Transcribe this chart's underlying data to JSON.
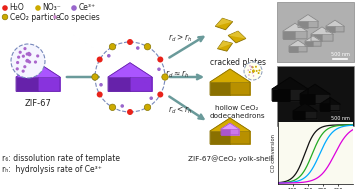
{
  "bg_color": "#ffffff",
  "legend_items": [
    {
      "label": "H₂O",
      "color": "#e8221a"
    },
    {
      "label": "NO₃⁻",
      "color": "#ccaa00"
    },
    {
      "label": "Ce³⁺",
      "color": "#9966cc"
    },
    {
      "label": "CeO₂ particle",
      "color": "#ccaa00"
    },
    {
      "label": "Co species",
      "color": "#cc88cc"
    }
  ],
  "label_zif67": "ZIF-67",
  "label_cracked": "cracked plates",
  "label_hollow": "hollow CeO₂\ndodecahedrons",
  "label_yolk": "ZIF-67@CeO₂ yolk-shell",
  "label_rd": "r₆: dissolution rate of template",
  "label_rh": "rₕ:  hydrolysis rate of Ce³⁺",
  "arrow_color": "#6a9a9a",
  "zif67_dark": "#6622aa",
  "zif67_mid": "#8833dd",
  "zif67_light": "#aa55ff",
  "gold_dark": "#8a7000",
  "gold_mid": "#b89000",
  "gold_light": "#d4aa00",
  "gold_top": "#e8cc44",
  "text_color": "#333333",
  "co_conv_colors": [
    "#111111",
    "#22aa22",
    "#00aaff",
    "#dd00dd"
  ],
  "sem_bg": "#c8c8c8",
  "tem_bg": "#111111"
}
